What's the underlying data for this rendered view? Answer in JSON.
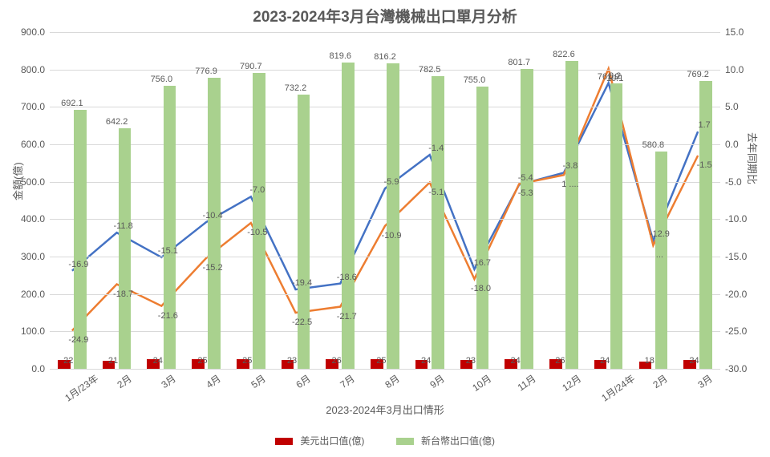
{
  "chart": {
    "type": "bar+line-dual-axis",
    "title": "2023-2024年3月台灣機械出口單月分析",
    "title_fontsize": 19,
    "title_color": "#595959",
    "background_color": "#ffffff",
    "grid_color": "#d9d9d9",
    "axis_font_color": "#595959",
    "label_fontsize": 12,
    "categories": [
      "1月/23年",
      "2月",
      "3月",
      "4月",
      "5月",
      "6月",
      "7月",
      "8月",
      "9月",
      "10月",
      "11月",
      "12月",
      "1月/24年",
      "2月",
      "3月"
    ],
    "x_axis_title": "2023-2024年3月出口情形",
    "y_left": {
      "title": "金額(億)",
      "min": 0,
      "max": 900,
      "step": 100,
      "decimals": 1
    },
    "y_right": {
      "title": "去年同期比",
      "min": -30,
      "max": 15,
      "step": 5,
      "decimals": 1
    },
    "series": {
      "usd": {
        "label": "美元出口值(億)",
        "axis": "left",
        "type": "bar",
        "color": "#c00000",
        "bar_width_frac": 0.28,
        "offset_frac": -0.18,
        "values": [
          22.6,
          21.3,
          24.7,
          25.5,
          25.8,
          23.8,
          26.5,
          25.8,
          24.5,
          23.5,
          24.9,
          26.2,
          24.5,
          18.5,
          24.4
        ],
        "label_position": "bottom"
      },
      "twd": {
        "label": "新台幣出口值(億)",
        "axis": "left",
        "type": "bar",
        "color": "#a9d18e",
        "bar_width_frac": 0.28,
        "offset_frac": 0.18,
        "values": [
          692.1,
          642.2,
          756.0,
          776.9,
          790.7,
          732.2,
          819.6,
          816.2,
          782.5,
          755.0,
          801.7,
          822.6,
          761.9,
          580.8,
          769.2
        ],
        "label_position": "top"
      },
      "line_blue": {
        "axis": "right",
        "type": "line",
        "color": "#4472c4",
        "line_width": 2.5,
        "values": [
          -16.9,
          -11.8,
          -15.1,
          -10.4,
          -7.0,
          -19.4,
          -18.6,
          -5.9,
          -1.4,
          -16.7,
          -5.4,
          -3.8,
          8.2,
          -12.9,
          1.7
        ],
        "show_labels": true
      },
      "line_orange": {
        "axis": "right",
        "type": "line",
        "color": "#ed7d31",
        "line_width": 2.5,
        "values": [
          -24.9,
          -18.7,
          -21.6,
          -15.2,
          -10.5,
          -22.5,
          -21.7,
          -10.9,
          -5.1,
          -18.0,
          -5.3,
          -4.1,
          10.1,
          -13.5,
          -1.5
        ],
        "show_labels": true,
        "label_overrides": {
          "11": "1 ....",
          "13": "..."
        }
      }
    },
    "legend_items": [
      "usd",
      "twd"
    ]
  }
}
